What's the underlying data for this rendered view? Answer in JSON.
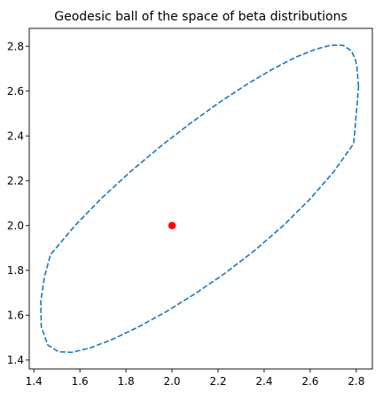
{
  "chart_data": {
    "type": "line",
    "title": "Geodesic ball of the space of beta distributions",
    "xlabel": "",
    "ylabel": "",
    "xlim": [
      1.38,
      2.87
    ],
    "ylim": [
      1.36,
      2.88
    ],
    "xticks": [
      1.4,
      1.6,
      1.8,
      2.0,
      2.2,
      2.4,
      2.6,
      2.8
    ],
    "xtick_labels": [
      "1.4",
      "1.6",
      "1.8",
      "2.0",
      "2.2",
      "2.4",
      "2.6",
      "2.8"
    ],
    "yticks": [
      1.4,
      1.6,
      1.8,
      2.0,
      2.2,
      2.4,
      2.6,
      2.8
    ],
    "ytick_labels": [
      "1.4",
      "1.6",
      "1.8",
      "2.0",
      "2.2",
      "2.4",
      "2.6",
      "2.8"
    ],
    "grid": false,
    "series": [
      {
        "style": "dashed",
        "color": "#1f77b4",
        "x": [
          2.81,
          2.803,
          2.797,
          2.779,
          2.743,
          2.69,
          2.621,
          2.536,
          2.438,
          2.329,
          2.209,
          2.083,
          1.952,
          1.821,
          1.694,
          1.576,
          1.472,
          1.446,
          1.43,
          1.432,
          1.46,
          1.507,
          1.564,
          1.645,
          1.741,
          1.851,
          1.972,
          2.099,
          2.23,
          2.359,
          2.483,
          2.599,
          2.702,
          2.789,
          2.81
        ],
        "y": [
          2.62,
          2.707,
          2.738,
          2.78,
          2.804,
          2.805,
          2.786,
          2.751,
          2.699,
          2.633,
          2.552,
          2.459,
          2.355,
          2.242,
          2.122,
          1.997,
          1.87,
          1.771,
          1.663,
          1.55,
          1.467,
          1.437,
          1.434,
          1.454,
          1.492,
          1.546,
          1.614,
          1.695,
          1.787,
          1.889,
          2.0,
          2.118,
          2.24,
          2.366,
          2.62
        ]
      },
      {
        "style": "point",
        "color": "#ff0000",
        "x": [
          2.0
        ],
        "y": [
          2.0
        ]
      }
    ]
  }
}
